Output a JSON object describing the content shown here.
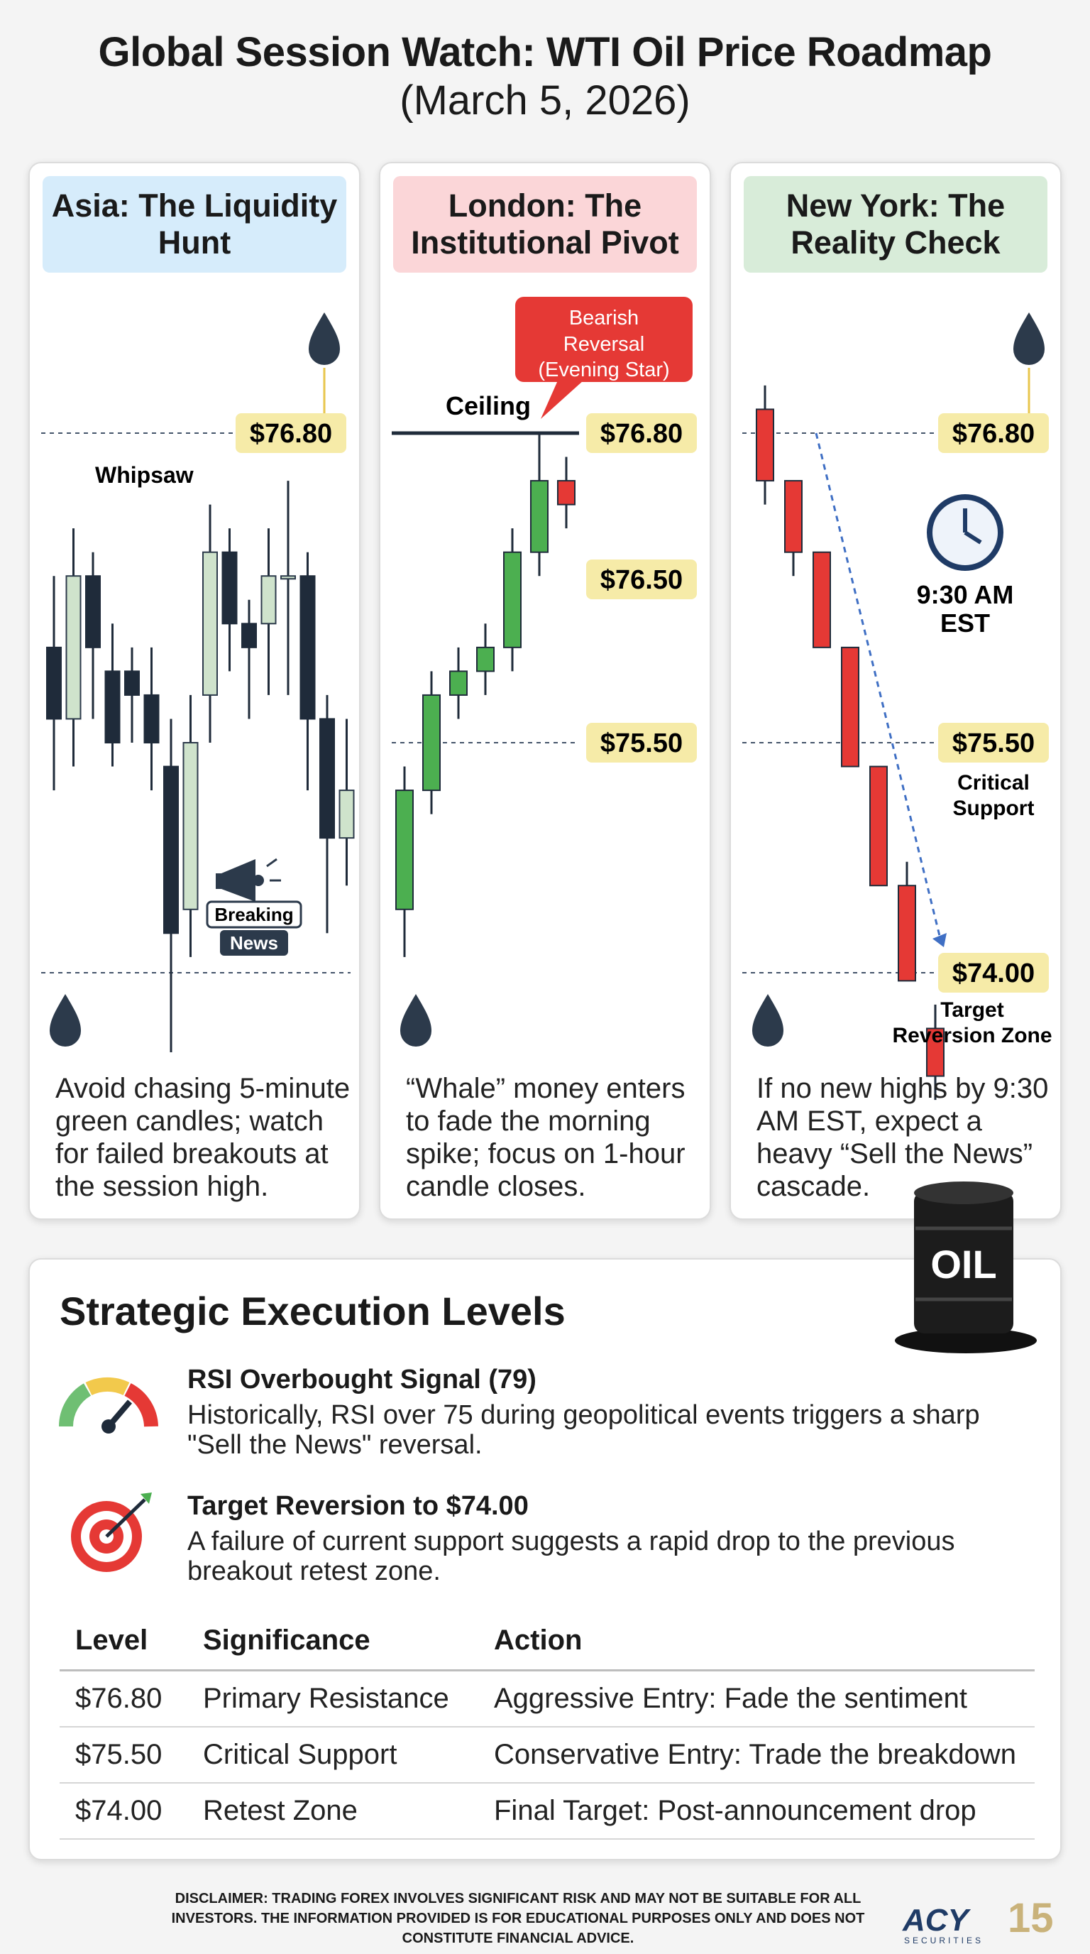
{
  "title": "Global Session Watch: WTI Oil Price Roadmap",
  "subtitle": "(March 5, 2026)",
  "panels": [
    {
      "header": "Asia: The Liquidity Hunt",
      "header_color": "#d6ecfb",
      "note": "Avoid chasing 5-minute green candles; watch for failed breakouts at the session high.",
      "labels": {
        "price_top": "$76.80",
        "whipsaw": "Whipsaw",
        "news_line1": "Breaking",
        "news_line2": "News"
      }
    },
    {
      "header": "London: The Institutional Pivot",
      "header_color": "#fbd6d8",
      "note": "“Whale” money enters to fade the morning spike; focus on 1-hour candle closes.",
      "labels": {
        "callout_line1": "Bearish",
        "callout_line2": "Reversal",
        "callout_line3": "(Evening Star)",
        "ceiling": "Ceiling",
        "price_top": "$76.80",
        "price_mid": "$76.50",
        "price_low": "$75.50"
      }
    },
    {
      "header": "New York: The Reality Check",
      "header_color": "#d8ecd9",
      "note": "If no new highs by 9:30 AM EST, expect a heavy “Sell the News” cascade.",
      "labels": {
        "price_top": "$76.80",
        "time_line1": "9:30 AM",
        "time_line2": "EST",
        "price_mid": "$75.50",
        "mid_line1": "Critical",
        "mid_line2": "Support",
        "price_low": "$74.00",
        "low_line1": "Target",
        "low_line2": "Reversion Zone"
      }
    }
  ],
  "oil_barrel_text": "OIL",
  "execution": {
    "heading": "Strategic Execution Levels",
    "signals": [
      {
        "title": "RSI Overbought Signal (79)",
        "line1": "Historically, RSI over 75 during geopolitical events triggers a sharp",
        "line2": "\"Sell the News\" reversal.",
        "icon": "gauge-icon"
      },
      {
        "title": "Target Reversion to $74.00",
        "line1": "A failure of current support suggests a rapid drop to the previous",
        "line2": "breakout retest zone.",
        "icon": "target-icon"
      }
    ],
    "table": {
      "headers": [
        "Level",
        "Significance",
        "Action"
      ],
      "rows": [
        [
          "$76.80",
          "Primary Resistance",
          "Aggressive Entry: Fade the sentiment"
        ],
        [
          "$75.50",
          "Critical Support",
          "Conservative Entry: Trade the breakdown"
        ],
        [
          "$74.00",
          "Retest Zone",
          "Final Target: Post-announcement drop"
        ]
      ]
    }
  },
  "disclaimer": {
    "line1": "DISCLAIMER: TRADING FOREX INVOLVES SIGNIFICANT RISK AND MAY NOT BE SUITABLE FOR ALL",
    "line2": "INVESTORS. THE INFORMATION PROVIDED IS FOR EDUCATIONAL PURPOSES ONLY AND DOES NOT",
    "line3": "CONSTITUTE FINANCIAL ADVICE."
  },
  "logo": {
    "name": "ACY",
    "sub": "SECURITIES",
    "years": "15"
  },
  "colors": {
    "bull_light": "#cfe3cc",
    "bear_dark": "#1f2b3a",
    "bull_green": "#4caf50",
    "bear_red": "#e53935",
    "price_tag": "#f6eba8",
    "callout": "#e53935"
  },
  "chart_data": [
    {
      "type": "candlestick",
      "session": "Asia",
      "levels": [
        76.8
      ],
      "candles": [
        {
          "o": 75.9,
          "h": 76.2,
          "l": 75.3,
          "c": 75.6
        },
        {
          "o": 75.6,
          "h": 76.4,
          "l": 75.4,
          "c": 76.2
        },
        {
          "o": 76.2,
          "h": 76.3,
          "l": 75.6,
          "c": 75.9
        },
        {
          "o": 75.8,
          "h": 76.0,
          "l": 75.4,
          "c": 75.5
        },
        {
          "o": 75.8,
          "h": 75.9,
          "l": 75.5,
          "c": 75.7
        },
        {
          "o": 75.7,
          "h": 75.9,
          "l": 75.3,
          "c": 75.5
        },
        {
          "o": 75.4,
          "h": 75.6,
          "l": 74.2,
          "c": 74.7
        },
        {
          "o": 74.8,
          "h": 75.7,
          "l": 74.6,
          "c": 75.5
        },
        {
          "o": 75.7,
          "h": 76.5,
          "l": 75.5,
          "c": 76.3
        },
        {
          "o": 76.3,
          "h": 76.4,
          "l": 75.8,
          "c": 76.0
        },
        {
          "o": 76.0,
          "h": 76.1,
          "l": 75.6,
          "c": 75.9
        },
        {
          "o": 76.0,
          "h": 76.4,
          "l": 75.7,
          "c": 76.2
        },
        {
          "o": 76.2,
          "h": 76.6,
          "l": 75.7,
          "c": 76.2
        },
        {
          "o": 76.2,
          "h": 76.3,
          "l": 75.3,
          "c": 75.6
        },
        {
          "o": 75.6,
          "h": 75.7,
          "l": 74.7,
          "c": 75.1
        },
        {
          "o": 75.1,
          "h": 75.6,
          "l": 74.9,
          "c": 75.3
        }
      ]
    },
    {
      "type": "candlestick",
      "session": "London",
      "levels": [
        76.8,
        76.5,
        75.5
      ],
      "candles": [
        {
          "o": 74.8,
          "h": 75.4,
          "l": 74.6,
          "c": 75.3
        },
        {
          "o": 75.3,
          "h": 75.8,
          "l": 75.2,
          "c": 75.7
        },
        {
          "o": 75.7,
          "h": 75.9,
          "l": 75.6,
          "c": 75.8
        },
        {
          "o": 75.8,
          "h": 76.0,
          "l": 75.7,
          "c": 75.9
        },
        {
          "o": 75.9,
          "h": 76.4,
          "l": 75.8,
          "c": 76.3
        },
        {
          "o": 76.3,
          "h": 76.8,
          "l": 76.2,
          "c": 76.6
        },
        {
          "o": 76.6,
          "h": 76.7,
          "l": 76.4,
          "c": 76.5
        }
      ]
    },
    {
      "type": "candlestick",
      "session": "New York",
      "levels": [
        76.8,
        75.5,
        74.0
      ],
      "candles": [
        {
          "o": 76.9,
          "h": 77.0,
          "l": 76.5,
          "c": 76.6
        },
        {
          "o": 76.6,
          "h": 76.6,
          "l": 76.2,
          "c": 76.3
        },
        {
          "o": 76.3,
          "h": 76.3,
          "l": 75.9,
          "c": 75.9
        },
        {
          "o": 75.9,
          "h": 75.9,
          "l": 75.4,
          "c": 75.4
        },
        {
          "o": 75.4,
          "h": 75.4,
          "l": 74.9,
          "c": 74.9
        },
        {
          "o": 74.9,
          "h": 75.0,
          "l": 74.5,
          "c": 74.5
        },
        {
          "o": 74.3,
          "h": 74.4,
          "l": 74.0,
          "c": 74.1
        }
      ]
    }
  ]
}
